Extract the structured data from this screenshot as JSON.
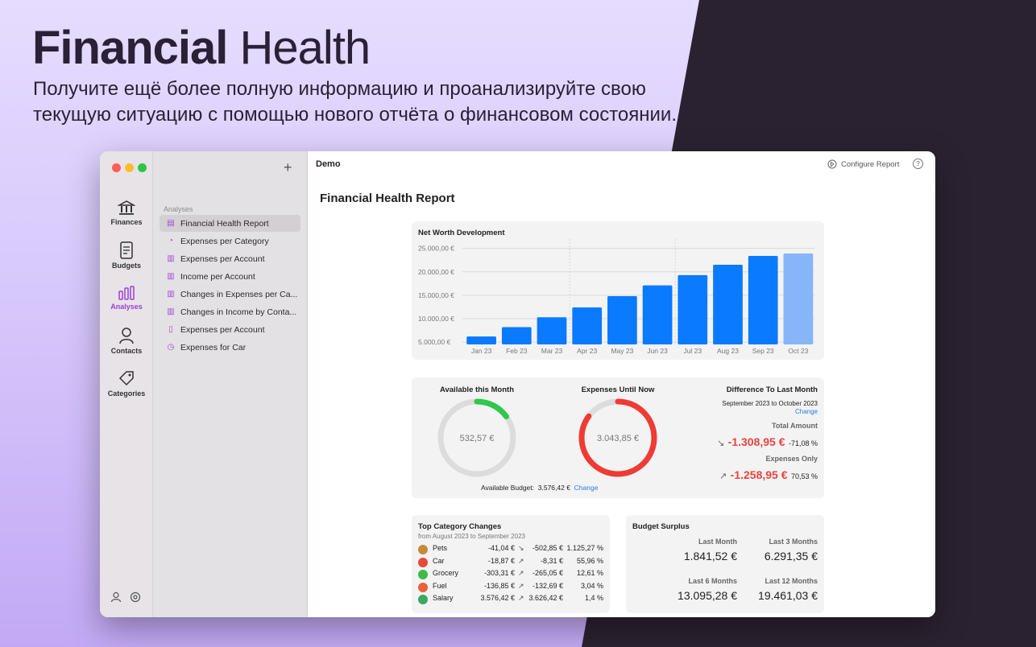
{
  "promo": {
    "title_bold": "Financial",
    "title_light": "Health",
    "subtitle": "Получите ещё более полную информацию и проанализируйте свою текущую ситуацию с помощью нового отчёта о финансовом состоянии."
  },
  "rail": {
    "items": [
      {
        "label": "Finances",
        "icon": "bank-icon"
      },
      {
        "label": "Budgets",
        "icon": "budget-icon"
      },
      {
        "label": "Analyses",
        "icon": "chart-icon",
        "active": true
      },
      {
        "label": "Contacts",
        "icon": "person-icon"
      },
      {
        "label": "Categories",
        "icon": "tag-icon"
      }
    ]
  },
  "sidebar": {
    "section": "Analyses",
    "items": [
      {
        "label": "Financial Health Report",
        "icon": "report-icon",
        "selected": true
      },
      {
        "label": "Expenses per Category",
        "icon": "pie-icon"
      },
      {
        "label": "Expenses per Account",
        "icon": "bar-icon"
      },
      {
        "label": "Income per Account",
        "icon": "bar-icon"
      },
      {
        "label": "Changes in Expenses per Ca...",
        "icon": "bar-icon"
      },
      {
        "label": "Changes in Income by Conta...",
        "icon": "bar-icon"
      },
      {
        "label": "Expenses per Account",
        "icon": "doc-icon"
      },
      {
        "label": "Expenses for Car",
        "icon": "clock-icon"
      }
    ]
  },
  "toolbar": {
    "doc_title": "Demo",
    "configure_label": "Configure Report",
    "help_label": "?"
  },
  "report": {
    "title": "Financial Health Report"
  },
  "chart_data": {
    "type": "bar",
    "title": "Net Worth Development",
    "categories": [
      "Jan 23",
      "Feb 23",
      "Mar 23",
      "Apr 23",
      "May 23",
      "Jun 23",
      "Jul 23",
      "Aug 23",
      "Sep 23",
      "Oct 23"
    ],
    "values": [
      6200,
      8200,
      10300,
      12400,
      14800,
      17100,
      19300,
      21500,
      23400,
      23900
    ],
    "ytick_labels": [
      "25.000,00 €",
      "20.000,00 €",
      "15.000,00 €",
      "10.000,00 €",
      "5.000,00 €"
    ],
    "ytick_values": [
      25000,
      20000,
      15000,
      10000,
      5000
    ],
    "ylim": [
      4500,
      27000
    ],
    "colors": {
      "bar": "#0a7aff",
      "bar_projected": "#86b5f9"
    }
  },
  "available": {
    "title": "Available this Month",
    "value": "532,57 €",
    "fraction": 0.15,
    "color": "#30c74b"
  },
  "expenses": {
    "title": "Expenses Until Now",
    "value": "3.043,85 €",
    "fraction": 0.85,
    "color": "#ef3b33"
  },
  "budget": {
    "label": "Available Budget:",
    "value": "3.576,42 €",
    "change": "Change"
  },
  "difference": {
    "title": "Difference To Last Month",
    "range": "September 2023 to October 2023",
    "change": "Change",
    "total_label": "Total Amount",
    "total_arrow": "↘",
    "total_value": "-1.308,95 €",
    "total_pct": "-71,08 %",
    "exp_label": "Expenses Only",
    "exp_arrow": "↗",
    "exp_value": "-1.258,95 €",
    "exp_pct": "70,53 %"
  },
  "top_changes": {
    "title": "Top Category Changes",
    "range": "from August 2023 to September 2023",
    "rows": [
      {
        "name": "Pets",
        "icon": "paw-icon",
        "color": "#c78b3a",
        "a": "-41,04 €",
        "arrow": "↘",
        "b": "-502,85 €",
        "pct": "1.125,27 %"
      },
      {
        "name": "Car",
        "icon": "car-icon",
        "color": "#e54b3b",
        "a": "-18,87 €",
        "arrow": "↗",
        "b": "-8,31 €",
        "pct": "55,96 %"
      },
      {
        "name": "Grocery",
        "icon": "grocery-icon",
        "color": "#3dbb47",
        "a": "-303,31 €",
        "arrow": "↗",
        "b": "-265,05 €",
        "pct": "12,61 %"
      },
      {
        "name": "Fuel",
        "icon": "fuel-icon",
        "color": "#e8623a",
        "a": "-136,85 €",
        "arrow": "↗",
        "b": "-132,69 €",
        "pct": "3,04 %"
      },
      {
        "name": "Salary",
        "icon": "salary-icon",
        "color": "#3aaa5e",
        "a": "3.576,42 €",
        "arrow": "↗",
        "b": "3.626,42 €",
        "pct": "1,4 %"
      }
    ]
  },
  "surplus": {
    "title": "Budget Surplus",
    "last_month_label": "Last Month",
    "last_month": "1.841,52 €",
    "last3_label": "Last 3 Months",
    "last3": "6.291,35 €",
    "last6_label": "Last 6 Months",
    "last6": "13.095,28 €",
    "last12_label": "Last 12 Months",
    "last12": "19.461,03 €"
  }
}
